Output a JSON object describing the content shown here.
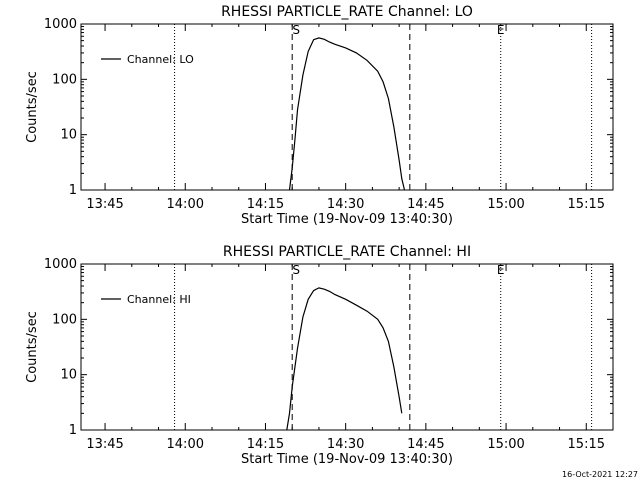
{
  "footer": {
    "timestamp": "16-Oct-2021 12:27"
  },
  "chart_data": [
    {
      "type": "line",
      "title": "RHESSI PARTICLE_RATE Channel: LO",
      "xlabel": "Start Time (19-Nov-09 13:40:30)",
      "ylabel": "Counts/sec",
      "yscale": "log",
      "ylim": [
        1,
        1000
      ],
      "xlim": [
        "13:40:30",
        "15:20:00"
      ],
      "yticks": [
        {
          "label": "1",
          "value": 1
        },
        {
          "label": "10",
          "value": 10
        },
        {
          "label": "100",
          "value": 100
        },
        {
          "label": "1000",
          "value": 1000
        }
      ],
      "xticks": [
        {
          "label": "13:45",
          "value": "13:45"
        },
        {
          "label": "14:00",
          "value": "14:00"
        },
        {
          "label": "14:15",
          "value": "14:15"
        },
        {
          "label": "14:30",
          "value": "14:30"
        },
        {
          "label": "14:45",
          "value": "14:45"
        },
        {
          "label": "15:00",
          "value": "15:00"
        },
        {
          "label": "15:15",
          "value": "15:15"
        }
      ],
      "legend": "top-left",
      "series": [
        {
          "name": "Channel: LO",
          "x": [
            "14:19:30",
            "14:20:00",
            "14:20:30",
            "14:21:00",
            "14:22:00",
            "14:23:00",
            "14:24:00",
            "14:25:00",
            "14:26:00",
            "14:27:00",
            "14:28:00",
            "14:30:00",
            "14:32:00",
            "14:34:00",
            "14:36:00",
            "14:37:00",
            "14:38:00",
            "14:39:00",
            "14:40:00",
            "14:40:30",
            "14:41:00"
          ],
          "y": [
            1,
            2.5,
            8,
            28,
            120,
            320,
            520,
            560,
            530,
            470,
            430,
            370,
            300,
            220,
            140,
            90,
            45,
            14,
            3.5,
            1.6,
            1
          ]
        }
      ],
      "vlines_dashed": [
        {
          "x": "14:20:00",
          "label": "S"
        },
        {
          "x": "14:42:00",
          "label": ""
        }
      ],
      "vlines_dotted": [
        {
          "x": "13:58:00",
          "label": ""
        },
        {
          "x": "14:59:00",
          "label": "E"
        },
        {
          "x": "15:16:00",
          "label": ""
        }
      ]
    },
    {
      "type": "line",
      "title": "RHESSI PARTICLE_RATE Channel: HI",
      "xlabel": "Start Time (19-Nov-09 13:40:30)",
      "ylabel": "Counts/sec",
      "yscale": "log",
      "ylim": [
        1,
        1000
      ],
      "xlim": [
        "13:40:30",
        "15:20:00"
      ],
      "yticks": [
        {
          "label": "1",
          "value": 1
        },
        {
          "label": "10",
          "value": 10
        },
        {
          "label": "100",
          "value": 100
        },
        {
          "label": "1000",
          "value": 1000
        }
      ],
      "xticks": [
        {
          "label": "13:45",
          "value": "13:45"
        },
        {
          "label": "14:00",
          "value": "14:00"
        },
        {
          "label": "14:15",
          "value": "14:15"
        },
        {
          "label": "14:30",
          "value": "14:30"
        },
        {
          "label": "14:45",
          "value": "14:45"
        },
        {
          "label": "15:00",
          "value": "15:00"
        },
        {
          "label": "15:15",
          "value": "15:15"
        }
      ],
      "legend": "top-left",
      "series": [
        {
          "name": "Channel: HI",
          "x": [
            "14:19:00",
            "14:19:30",
            "14:20:00",
            "14:21:00",
            "14:22:00",
            "14:23:00",
            "14:24:00",
            "14:25:00",
            "14:26:00",
            "14:27:00",
            "14:28:00",
            "14:30:00",
            "14:32:00",
            "14:34:00",
            "14:36:00",
            "14:37:00",
            "14:38:00",
            "14:39:00",
            "14:40:00",
            "14:40:30"
          ],
          "y": [
            1,
            2,
            6,
            30,
            110,
            230,
            330,
            370,
            350,
            320,
            280,
            230,
            180,
            140,
            100,
            70,
            40,
            14,
            4,
            2
          ]
        }
      ],
      "vlines_dashed": [
        {
          "x": "14:20:00",
          "label": "S"
        },
        {
          "x": "14:42:00",
          "label": ""
        }
      ],
      "vlines_dotted": [
        {
          "x": "13:58:00",
          "label": ""
        },
        {
          "x": "14:59:00",
          "label": "E"
        },
        {
          "x": "15:16:00",
          "label": ""
        }
      ]
    }
  ]
}
